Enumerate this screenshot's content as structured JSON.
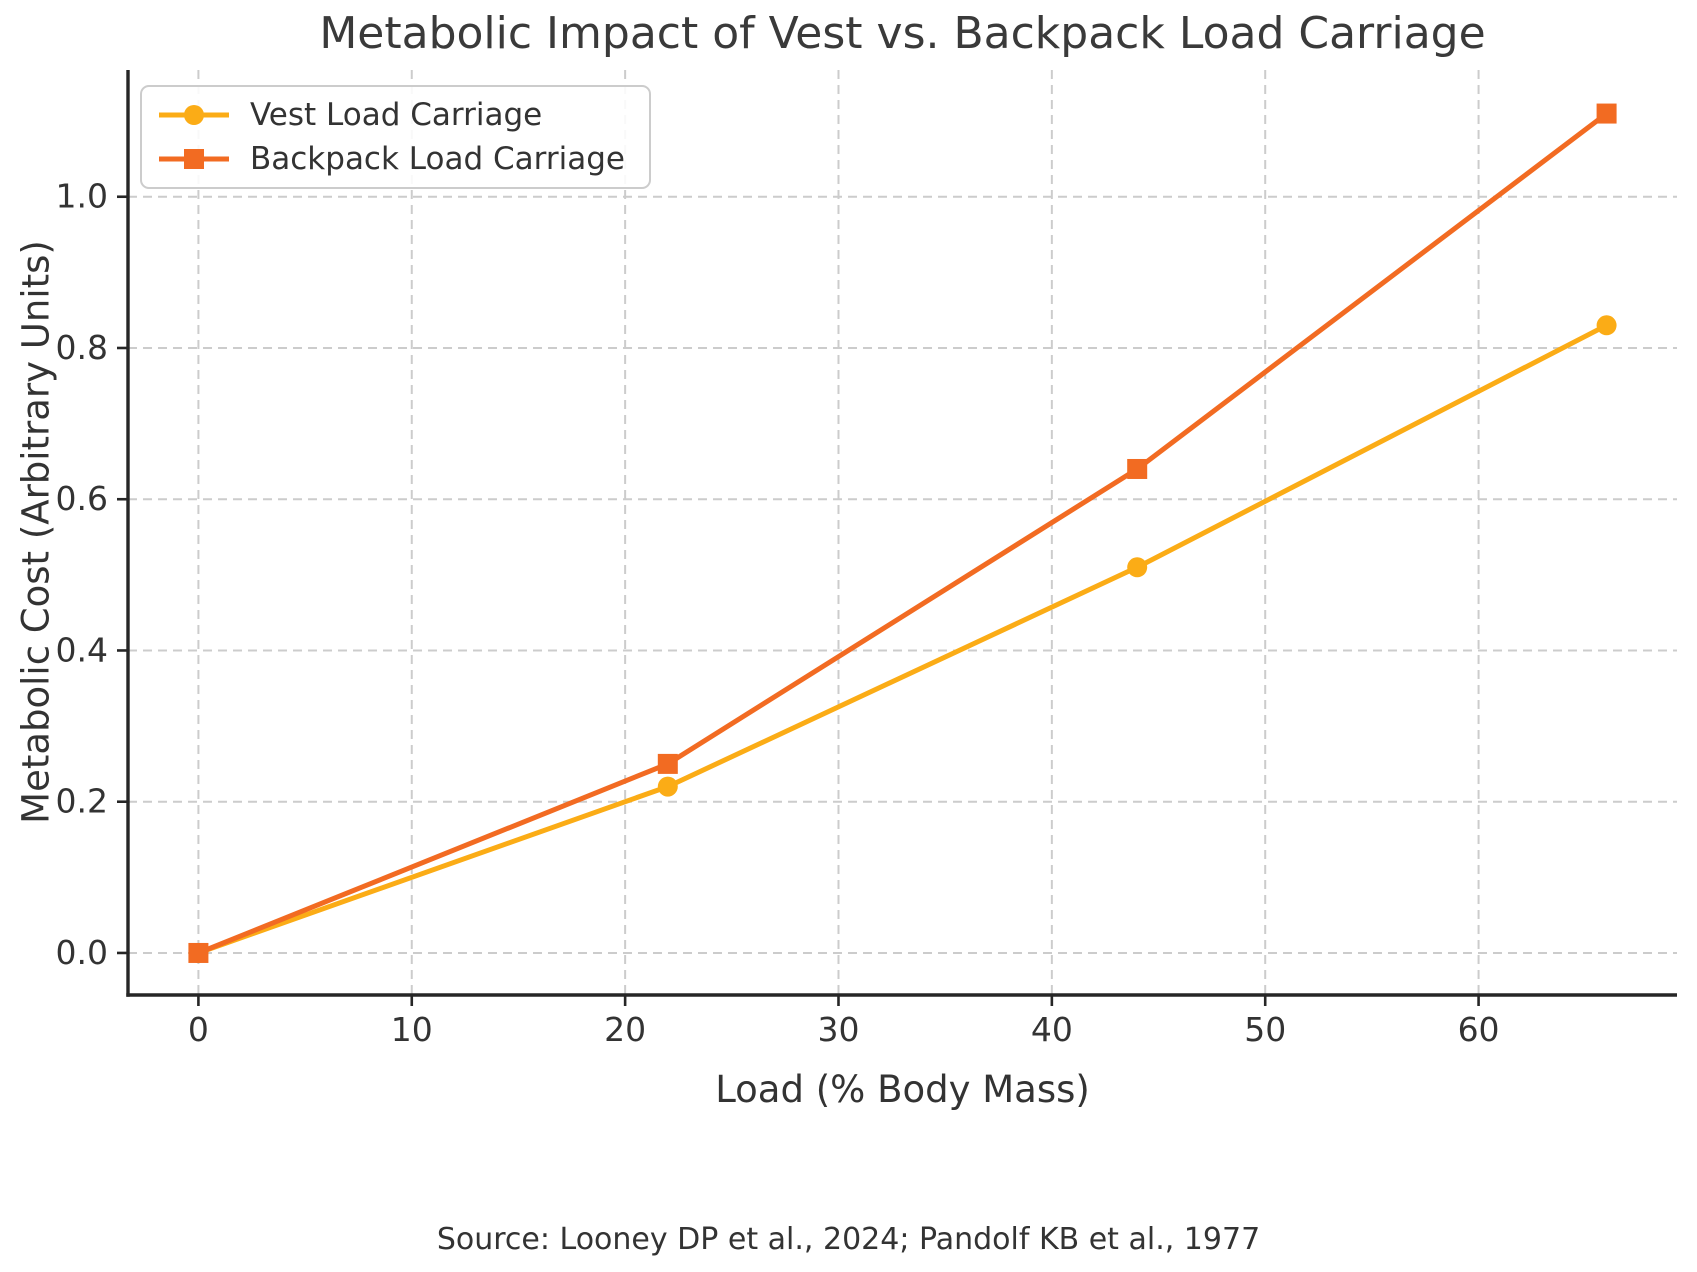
{
  "figure": {
    "title": "Metabolic Impact of Vest vs. Backpack Load Carriage",
    "source_note": "Source: Looney DP et al., 2024; Pandolf KB et al., 1977"
  },
  "chart_data": {
    "type": "line",
    "title": "Metabolic Impact of Vest vs. Backpack Load Carriage",
    "xlabel": "Load (% Body Mass)",
    "ylabel": "Metabolic Cost (Arbitrary Units)",
    "x": [
      0,
      22,
      44,
      66
    ],
    "series": [
      {
        "name": "Vest Load Carriage",
        "values": [
          0.0,
          0.22,
          0.51,
          0.83
        ],
        "color": "#FBAC16",
        "marker": "circle"
      },
      {
        "name": "Backpack Load Carriage",
        "values": [
          0.0,
          0.25,
          0.64,
          1.11
        ],
        "color": "#F26B22",
        "marker": "square"
      }
    ],
    "xticks": [
      0,
      10,
      20,
      30,
      40,
      50,
      60
    ],
    "ytick_labels": [
      "0.0",
      "0.2",
      "0.4",
      "0.6",
      "0.8",
      "1.0"
    ],
    "ytick_values": [
      0.0,
      0.2,
      0.4,
      0.6,
      0.8,
      1.0
    ],
    "xlim": [
      -3.3,
      69.3
    ],
    "ylim": [
      -0.0556,
      1.1676
    ],
    "grid": true,
    "grid_style": "dashed",
    "legend_position": "upper left",
    "source": "Source: Looney DP et al., 2024; Pandolf KB et al., 1977",
    "colors": {
      "grid": "#cccccc",
      "spine": "#262626",
      "tick_label": "#333333",
      "title": "#3a3a3a"
    }
  }
}
